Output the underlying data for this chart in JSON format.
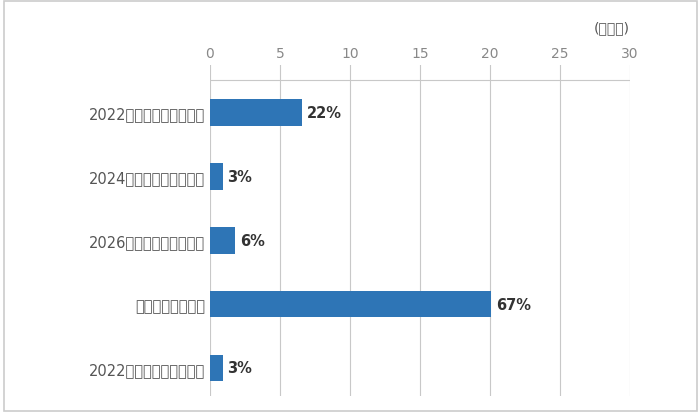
{
  "categories": [
    "2022年以降上げる見込み",
    "変化しない見込み",
    "2026年以降下げる見込み",
    "2024年以降下げる見込み",
    "2022年以降下げる見込み"
  ],
  "values": [
    0.9,
    20.1,
    1.8,
    0.9,
    6.6
  ],
  "labels": [
    "3%",
    "67%",
    "6%",
    "3%",
    "22%"
  ],
  "bar_color": "#2E75B6",
  "background_color": "#FFFFFF",
  "xlim": [
    0,
    30
  ],
  "xticks": [
    0,
    5,
    10,
    15,
    20,
    25,
    30
  ],
  "grid_color": "#C8C8C8",
  "unit_label": "(企業数)",
  "bar_height": 0.42,
  "label_fontsize": 10.5,
  "tick_fontsize": 10,
  "unit_fontsize": 10,
  "label_color": "#555555",
  "tick_color": "#888888",
  "border_color": "#CCCCCC"
}
